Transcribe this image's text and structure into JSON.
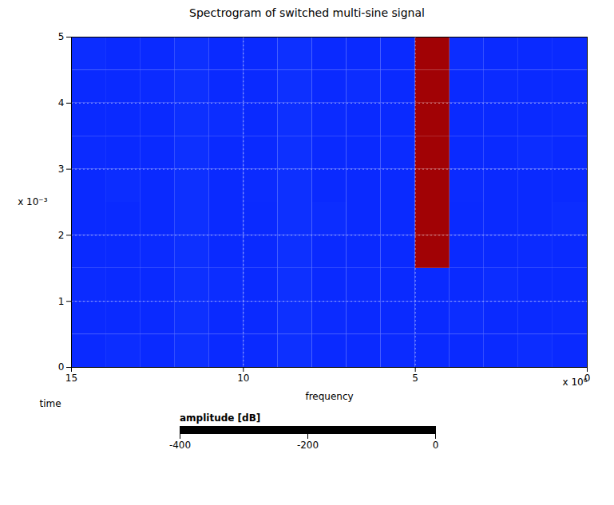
{
  "chart_data": {
    "type": "heatmap",
    "title": "Spectrogram of switched multi-sine signal",
    "x_label": "frequency",
    "y_label": "time",
    "z_label": "amplitude [dB]",
    "x_multiplier": "x 10⁶",
    "y_multiplier": "x 10⁻³",
    "xlim": [
      15,
      0
    ],
    "xticks": [
      15,
      10,
      5,
      0
    ],
    "ylim": [
      0,
      5
    ],
    "yticks": [
      0,
      1,
      2,
      3,
      4,
      5
    ],
    "grid": true,
    "x_bins": [
      0,
      1,
      2,
      3,
      4,
      5,
      6,
      7,
      8,
      9,
      10,
      11,
      12,
      13,
      14,
      15
    ],
    "y_bins": [
      0,
      0.5,
      1,
      1.5,
      2,
      2.5,
      3,
      3.5,
      4,
      4.5,
      5
    ],
    "amplitude": [
      [
        -400,
        -395,
        -400,
        -400,
        -400,
        -398,
        -400,
        -400,
        -390,
        -400,
        -400,
        -390,
        -400,
        -395,
        -400
      ],
      [
        -398,
        -400,
        -400,
        -395,
        -400,
        -400,
        -400,
        -398,
        -390,
        -400,
        -400,
        -390,
        -400,
        -400,
        -400
      ],
      [
        -400,
        -400,
        -395,
        -400,
        -400,
        -400,
        -398,
        -400,
        -390,
        -400,
        -395,
        -390,
        -400,
        -400,
        -398
      ],
      [
        -400,
        -398,
        -400,
        -400,
        -150,
        -400,
        -400,
        -400,
        -390,
        -400,
        -400,
        -390,
        -398,
        -400,
        -400
      ],
      [
        -395,
        -400,
        -400,
        -400,
        -150,
        -400,
        -400,
        -395,
        -390,
        -400,
        -400,
        -390,
        -400,
        -400,
        -400
      ],
      [
        -400,
        -400,
        -400,
        -398,
        -150,
        -400,
        -400,
        -400,
        -390,
        -398,
        -400,
        -390,
        -400,
        -395,
        -400
      ],
      [
        -400,
        -395,
        -400,
        -400,
        -150,
        -398,
        -400,
        -400,
        -390,
        -400,
        -400,
        -390,
        -400,
        -400,
        -398
      ],
      [
        -398,
        -400,
        -400,
        -400,
        -150,
        -400,
        -400,
        -398,
        -390,
        -400,
        -395,
        -390,
        -400,
        -400,
        -400
      ],
      [
        -400,
        -400,
        -398,
        -400,
        -150,
        -400,
        -395,
        -400,
        -390,
        -400,
        -400,
        -390,
        -398,
        -400,
        -400
      ],
      [
        -400,
        -400,
        -400,
        -395,
        -150,
        -400,
        -400,
        -400,
        -390,
        -400,
        -400,
        -390,
        -400,
        -400,
        -395
      ]
    ],
    "amplitude_lim": [
      -400,
      0
    ],
    "amplitude_ticks": [
      0,
      -200,
      -400
    ]
  }
}
